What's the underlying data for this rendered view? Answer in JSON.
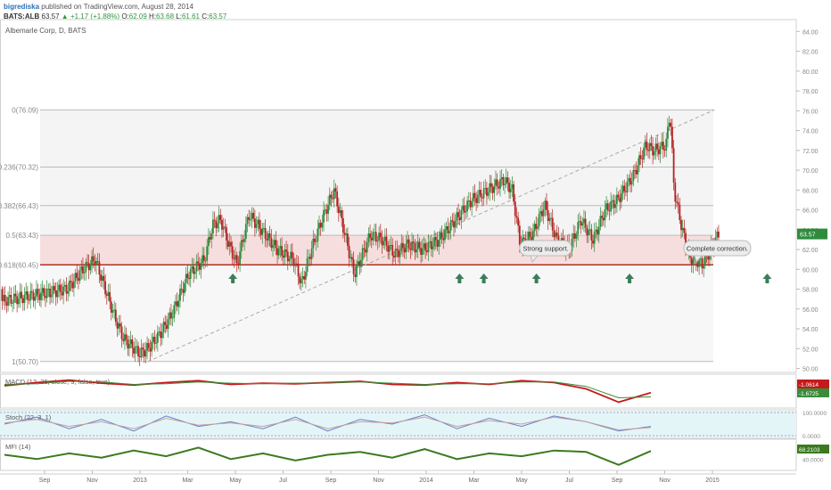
{
  "header": {
    "user": "bigrediska",
    "published": "published on TradingView.com, August 28, 2014",
    "symbol": "BATS:ALB",
    "last": "63.57",
    "change": "▲ +1.17 (+1.88%)",
    "open_label": "O:",
    "open": "62.09",
    "high_label": "H:",
    "high": "63.68",
    "low_label": "L:",
    "low": "61.61",
    "close_label": "C:",
    "close": "63.57"
  },
  "chart_data": [
    {
      "type": "candlestick",
      "title": "Albemarle Corp, D, BATS",
      "ylim": [
        49.6,
        85.2
      ],
      "y_ticks": [
        "84.00",
        "82.00",
        "80.00",
        "78.00",
        "76.00",
        "74.00",
        "72.00",
        "70.00",
        "68.00",
        "66.00",
        "64.00",
        "62.00",
        "60.00",
        "58.00",
        "56.00",
        "54.00",
        "52.00",
        "50.00"
      ],
      "x_ticks": [
        "Sep",
        "Nov",
        "2013",
        "Mar",
        "May",
        "Jul",
        "Sep",
        "Nov",
        "2014",
        "Mar",
        "May",
        "Jul",
        "Sep",
        "Nov",
        "2015"
      ],
      "last_price_label": "63.57",
      "fib_levels": [
        {
          "label": "0(76.09)",
          "value": 76.09
        },
        {
          "label": "0.236(70.32)",
          "value": 70.32
        },
        {
          "label": "0.382(66.43)",
          "value": 66.43
        },
        {
          "label": "0.5(63.43)",
          "value": 63.43
        },
        {
          "label": "0.618(60.45)",
          "value": 60.45
        },
        {
          "label": "1(50.70)",
          "value": 50.7
        }
      ],
      "trendline": {
        "from": [
          1,
          50.7
        ],
        "to": [
          8,
          76.1
        ]
      },
      "annotations": [
        "Strong support.",
        "Complete correction."
      ],
      "support_arrows_x": [
        2.05,
        4.85,
        5.15,
        5.8,
        6.95,
        8.65
      ],
      "price_path": [
        [
          0.0,
          58.0
        ],
        [
          0.2,
          60.0
        ],
        [
          0.35,
          61.0
        ],
        [
          0.6,
          55.0
        ],
        [
          0.7,
          53.0
        ],
        [
          0.9,
          51.5
        ],
        [
          1.0,
          52.0
        ],
        [
          1.15,
          53.5
        ],
        [
          1.3,
          55.5
        ],
        [
          1.5,
          59.5
        ],
        [
          1.7,
          61.0
        ],
        [
          1.8,
          64.5
        ],
        [
          1.9,
          65.0
        ],
        [
          2.0,
          62.5
        ],
        [
          2.1,
          60.5
        ],
        [
          2.25,
          65.5
        ],
        [
          2.4,
          64.0
        ],
        [
          2.6,
          62.0
        ],
        [
          2.8,
          61.0
        ],
        [
          2.9,
          58.5
        ],
        [
          3.0,
          61.5
        ],
        [
          3.15,
          65.0
        ],
        [
          3.3,
          68.0
        ],
        [
          3.45,
          63.0
        ],
        [
          3.55,
          59.5
        ],
        [
          3.65,
          61.5
        ],
        [
          3.75,
          63.5
        ],
        [
          3.9,
          63.0
        ],
        [
          4.05,
          61.5
        ],
        [
          4.2,
          62.5
        ],
        [
          4.4,
          62.0
        ],
        [
          4.6,
          63.0
        ],
        [
          4.8,
          65.0
        ],
        [
          5.0,
          67.0
        ],
        [
          5.2,
          68.0
        ],
        [
          5.4,
          69.0
        ],
        [
          5.5,
          68.0
        ],
        [
          5.6,
          62.5
        ],
        [
          5.75,
          63.5
        ],
        [
          5.9,
          66.5
        ],
        [
          6.05,
          63.0
        ],
        [
          6.2,
          62.0
        ],
        [
          6.35,
          65.0
        ],
        [
          6.5,
          63.0
        ],
        [
          6.65,
          66.0
        ],
        [
          6.8,
          67.0
        ],
        [
          7.0,
          69.5
        ],
        [
          7.15,
          72.5
        ],
        [
          7.25,
          72.0
        ],
        [
          7.4,
          72.5
        ],
        [
          7.45,
          76.0
        ],
        [
          7.5,
          68.0
        ],
        [
          7.6,
          64.0
        ],
        [
          7.7,
          61.0
        ],
        [
          7.75,
          61.0
        ],
        [
          7.85,
          60.5
        ],
        [
          7.95,
          62.0
        ],
        [
          8.05,
          63.57
        ]
      ]
    },
    {
      "type": "line",
      "title": "MACD (12, 26, close, 9, false, true)",
      "y_ticks": [
        "0.0000"
      ],
      "value_labels": [
        "-1.0614",
        "-1.6725"
      ],
      "series": [
        {
          "values": [
            0.1,
            0.6,
            1.0,
            0.5,
            0.2,
            0.6,
            0.9,
            0.3,
            0.5,
            0.4,
            0.6,
            0.8,
            0.3,
            0.2,
            0.6,
            0.3,
            0.9,
            0.6,
            -0.4,
            -2.5,
            -1.0
          ]
        },
        {
          "values": [
            0.3,
            0.4,
            0.8,
            0.7,
            0.3,
            0.4,
            0.7,
            0.5,
            0.4,
            0.5,
            0.5,
            0.7,
            0.5,
            0.3,
            0.4,
            0.4,
            0.7,
            0.7,
            0.0,
            -1.8,
            -1.67
          ]
        }
      ]
    },
    {
      "type": "line",
      "title": "Stoch (22, 3, 1)",
      "y_ticks": [
        "100.0000",
        "0.0000"
      ],
      "series": [
        {
          "values": [
            50,
            80,
            30,
            70,
            20,
            85,
            40,
            60,
            30,
            80,
            20,
            70,
            50,
            90,
            30,
            75,
            40,
            85,
            60,
            20,
            40
          ]
        },
        {
          "values": [
            55,
            70,
            40,
            60,
            30,
            75,
            45,
            55,
            40,
            70,
            30,
            60,
            55,
            80,
            40,
            65,
            50,
            80,
            60,
            25,
            35
          ]
        }
      ]
    },
    {
      "type": "line",
      "title": "MFI (14)",
      "y_ticks": [
        "80.0000",
        "40.0000"
      ],
      "value_labels": [
        "68.2103"
      ],
      "series": [
        {
          "values": [
            55,
            40,
            60,
            45,
            70,
            50,
            80,
            40,
            60,
            35,
            55,
            65,
            45,
            75,
            40,
            60,
            50,
            70,
            65,
            20,
            68.2
          ]
        }
      ]
    }
  ]
}
